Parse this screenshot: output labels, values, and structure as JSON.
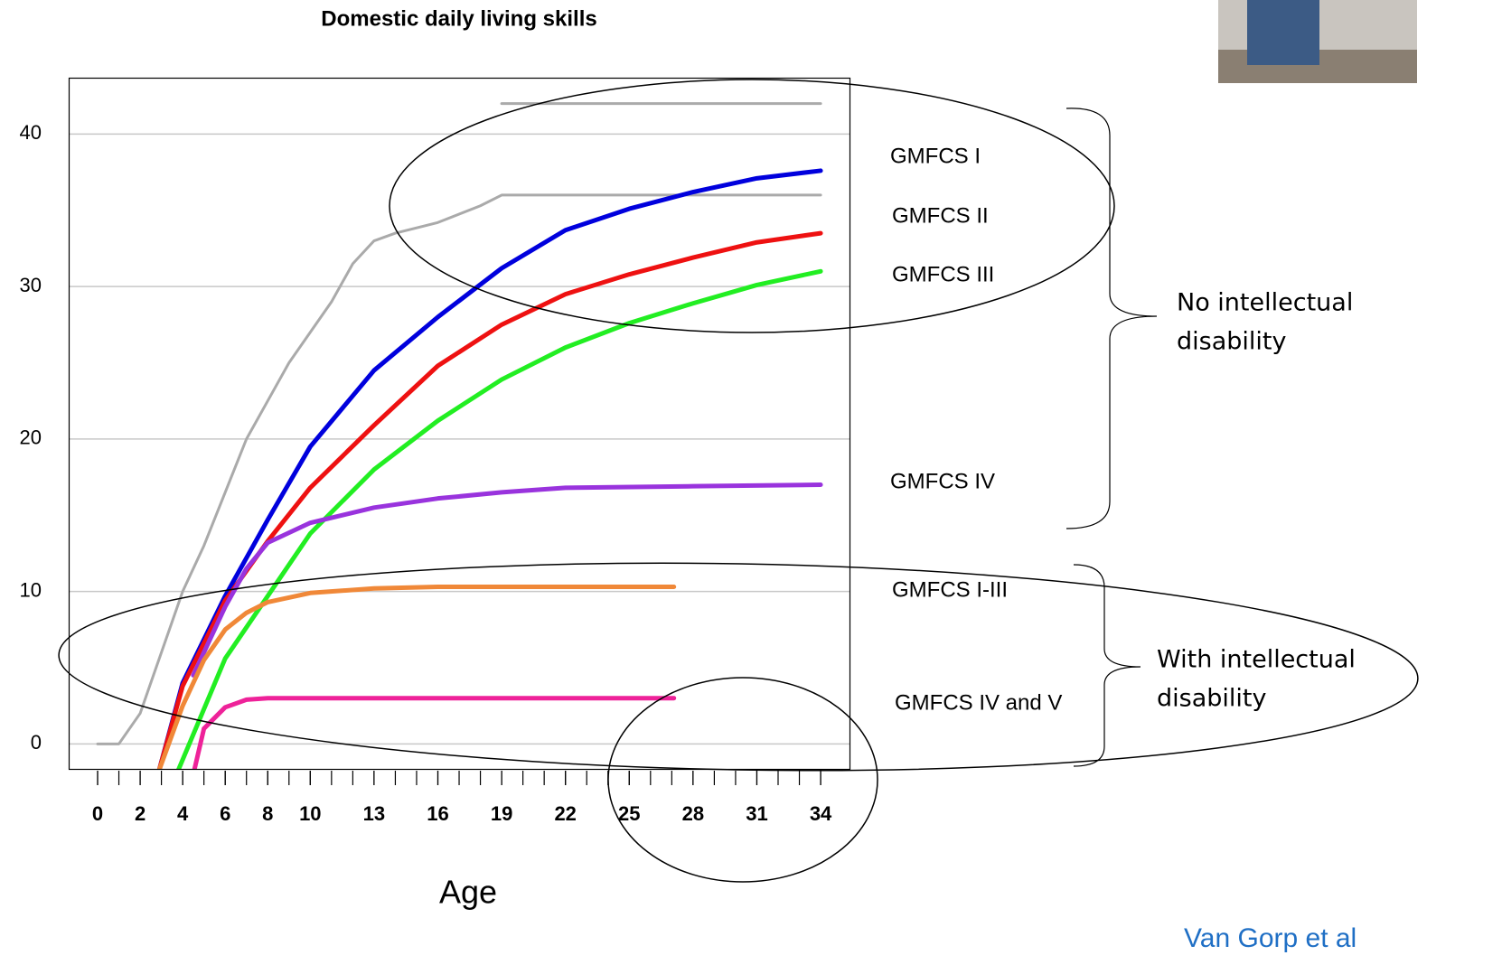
{
  "chart_data": {
    "type": "line",
    "title": "Domestic daily living skills",
    "x_label": "Age",
    "xlim": [
      -1.36,
      35.4
    ],
    "ylim": [
      -1.7,
      43.7
    ],
    "xticks": [
      0,
      2,
      4,
      6,
      8,
      10,
      13,
      16,
      19,
      22,
      25,
      28,
      31,
      34
    ],
    "xminor": [
      0,
      1,
      2,
      3,
      4,
      5,
      6,
      7,
      8,
      9,
      10,
      11,
      12,
      13,
      14,
      15,
      16,
      17,
      18,
      19,
      20,
      21,
      22,
      23,
      24,
      25,
      26,
      27,
      28,
      29,
      30,
      31,
      32,
      33,
      34
    ],
    "yticks": [
      0,
      10,
      20,
      30,
      40
    ],
    "grid": true,
    "series": [
      {
        "color": "#aaaaaa",
        "x": [
          19,
          34
        ],
        "values": [
          42,
          42
        ]
      },
      {
        "color": "#aaaaaa",
        "x": [
          0,
          1,
          2,
          3,
          4,
          5,
          6,
          7,
          8,
          9,
          10,
          11,
          12,
          13,
          14,
          16,
          18,
          19,
          34
        ],
        "values": [
          0,
          0,
          2,
          6,
          10,
          13,
          16.5,
          20,
          22.5,
          25,
          27,
          29,
          31.5,
          33,
          33.5,
          34.2,
          35.3,
          36,
          36
        ]
      },
      {
        "color": "#0000dd",
        "x": [
          2.9,
          4,
          6,
          8,
          10,
          13,
          16,
          19,
          22,
          25,
          28,
          31,
          34
        ],
        "values": [
          -1.7,
          4,
          9.7,
          14.7,
          19.5,
          24.5,
          28,
          31.2,
          33.7,
          35.1,
          36.2,
          37.1,
          37.6
        ]
      },
      {
        "color": "#ee1111",
        "x": [
          2.9,
          4,
          6,
          8,
          10,
          13,
          16,
          19,
          22,
          25,
          28,
          31,
          34
        ],
        "values": [
          -1.7,
          3.8,
          9.4,
          13.3,
          16.8,
          20.9,
          24.8,
          27.5,
          29.5,
          30.8,
          31.9,
          32.9,
          33.5
        ]
      },
      {
        "color": "#22ee22",
        "x": [
          3.8,
          6,
          8,
          10,
          13,
          16,
          19,
          22,
          25,
          28,
          31,
          34
        ],
        "values": [
          -1.7,
          5.6,
          9.7,
          13.8,
          18,
          21.2,
          23.9,
          26,
          27.6,
          28.9,
          30.1,
          31
        ]
      },
      {
        "color": "#9933dd",
        "x": [
          4.5,
          5,
          6,
          7,
          8,
          10,
          13,
          16,
          19,
          22,
          28,
          34
        ],
        "values": [
          4.5,
          6,
          9,
          11.5,
          13.2,
          14.5,
          15.5,
          16.1,
          16.5,
          16.8,
          16.9,
          17
        ]
      },
      {
        "color": "#f08838",
        "x": [
          2.9,
          4,
          5,
          6,
          7,
          8,
          10,
          13,
          16,
          27.1
        ],
        "values": [
          -1.7,
          2.5,
          5.5,
          7.5,
          8.6,
          9.3,
          9.9,
          10.2,
          10.3,
          10.3
        ]
      },
      {
        "color": "#ee2299",
        "x": [
          4.55,
          5,
          6,
          7,
          8,
          27.1
        ],
        "values": [
          -1.7,
          1,
          2.4,
          2.9,
          3,
          3
        ]
      }
    ],
    "annotations": [
      "GMFCS I",
      "GMFCS II",
      "GMFCS III",
      "GMFCS IV",
      "GMFCS I-III",
      "GMFCS IV and V"
    ],
    "no_id": [
      "No intellectual",
      "disability"
    ],
    "with_id": [
      "With intellectual",
      "disability"
    ],
    "source": "Van Gorp et al"
  }
}
